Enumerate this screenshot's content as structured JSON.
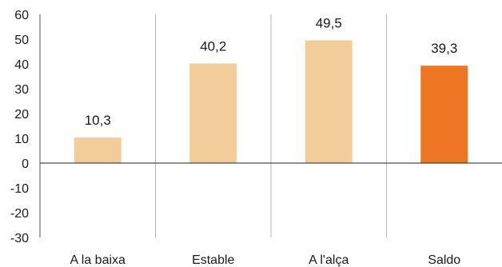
{
  "chart_data": {
    "type": "bar",
    "title": "",
    "xlabel": "",
    "ylabel": "",
    "categories": [
      "A la baixa",
      "Estable",
      "A l'alça",
      "Saldo"
    ],
    "values": [
      10.3,
      40.2,
      49.5,
      39.3
    ],
    "data_labels": [
      "10,3",
      "40,2",
      "49,5",
      "39,3"
    ],
    "ylim": [
      -30,
      60
    ],
    "yticks": [
      60,
      50,
      40,
      30,
      20,
      10,
      0,
      -10,
      -20,
      -30
    ],
    "bar_colors": [
      "#f2cd9a",
      "#f2cd9a",
      "#f2cd9a",
      "#ee7623"
    ],
    "grid": false,
    "category_separators": true,
    "legend": "none"
  }
}
